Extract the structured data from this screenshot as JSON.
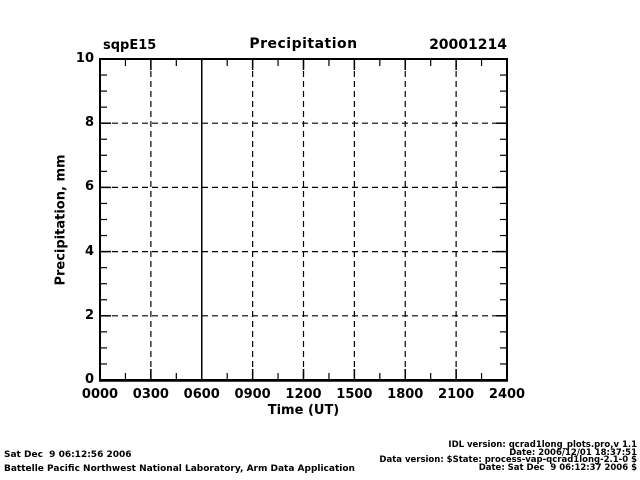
{
  "chart_data": {
    "type": "line",
    "title": "Precipitation",
    "site_label": "sqpE15",
    "date_label": "20001214",
    "xlabel": "Time (UT)",
    "ylabel": "Precipitation, mm",
    "x_ticks": [
      {
        "hour": 0,
        "label": "0000"
      },
      {
        "hour": 3,
        "label": "0300"
      },
      {
        "hour": 6,
        "label": "0600"
      },
      {
        "hour": 9,
        "label": "0900"
      },
      {
        "hour": 12,
        "label": "1200"
      },
      {
        "hour": 15,
        "label": "1500"
      },
      {
        "hour": 18,
        "label": "1800"
      },
      {
        "hour": 21,
        "label": "2100"
      },
      {
        "hour": 24,
        "label": "2400"
      }
    ],
    "y_ticks": [
      {
        "value": 0,
        "label": "0"
      },
      {
        "value": 2,
        "label": "2"
      },
      {
        "value": 4,
        "label": "4"
      },
      {
        "value": 6,
        "label": "6"
      },
      {
        "value": 8,
        "label": "8"
      },
      {
        "value": 10,
        "label": "10"
      }
    ],
    "xlim_hours": [
      0,
      24
    ],
    "ylim": [
      0,
      10
    ],
    "grid": {
      "show": true,
      "linestyle": "dashed"
    },
    "series": [],
    "annotations": [
      {
        "type": "vline",
        "hour": 6,
        "linestyle": "solid"
      }
    ],
    "colors": {
      "foreground": "#000000",
      "background": "#ffffff"
    }
  },
  "footer": {
    "left_lines": [
      "Sat Dec  9 06:12:56 2006",
      "Battelle Pacific Northwest National Laboratory, Arm Data Application"
    ],
    "right_lines": [
      "IDL version: qcrad1long_plots.pro,v 1.1",
      "Date: 2006/12/01 18:37:51",
      "Data version: $State: process-vap-qcrad1long-2.1-0 $",
      "Date: Sat Dec  9 06:12:37 2006 $"
    ]
  }
}
